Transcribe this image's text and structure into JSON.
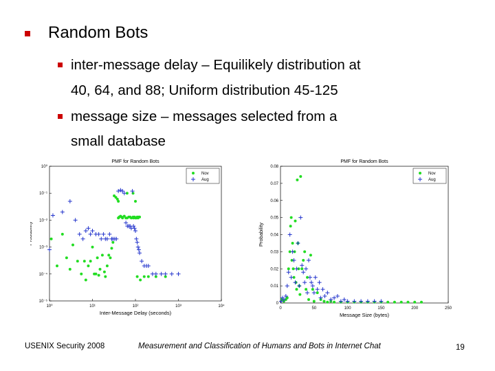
{
  "slide": {
    "heading": "Random Bots",
    "bullets": [
      {
        "lines": [
          "inter-message delay – Equilikely distribution at",
          "40, 64, and 88; Uniform distribution 45-125"
        ]
      },
      {
        "lines": [
          "message size – messages selected from a",
          "small database"
        ]
      }
    ],
    "footer_left": "USENIX Security 2008",
    "footer_center": "Measurement and Classification of Humans and Bots in Internet Chat",
    "page_number": "19"
  },
  "colors": {
    "bullet": "#cc0000",
    "nov": "#22dd22",
    "aug": "#2233cc"
  },
  "chart_data": [
    {
      "type": "scatter",
      "title": "PMF for Random Bots",
      "xlabel": "Inter-Message Delay (seconds)",
      "ylabel": "Probability",
      "x_scale": "log",
      "y_scale": "log",
      "xlim": [
        1,
        10000
      ],
      "ylim": [
        1e-05,
        1
      ],
      "x_ticks": [
        "10⁰",
        "10¹",
        "10²",
        "10³",
        "10⁴"
      ],
      "y_ticks": [
        "10⁰",
        "10⁻¹",
        "10⁻²",
        "10⁻³",
        "10⁻⁴",
        "10⁻⁵"
      ],
      "legend": [
        "Nov",
        "Aug"
      ],
      "legend_position": "top-right",
      "grid": false,
      "series": [
        {
          "name": "Nov",
          "marker": "dot",
          "x": [
            1.1,
            1.5,
            2,
            2.5,
            3,
            3.5,
            4.5,
            5.5,
            6.5,
            7,
            8,
            9,
            10,
            11,
            12,
            13,
            14,
            15,
            17,
            19,
            20,
            22,
            24,
            26,
            28,
            30,
            32,
            35,
            38,
            40,
            40,
            42,
            45,
            48,
            50,
            55,
            60,
            64,
            64,
            70,
            75,
            80,
            88,
            88,
            90,
            95,
            100,
            100,
            105,
            110,
            115,
            120,
            125,
            110,
            130,
            160,
            200,
            300,
            500
          ],
          "y": [
            0.002,
            0.0002,
            0.003,
            0.0004,
            0.00015,
            0.0012,
            0.0003,
            0.0001,
            0.0003,
            6e-05,
            0.0002,
            0.0003,
            0.001,
            0.0001,
            0.0001,
            0.0004,
            9e-05,
            0.00015,
            0.0005,
            0.00012,
            8e-05,
            0.0002,
            0.0005,
            0.0004,
            0.0009,
            0.0015,
            0.08,
            0.07,
            0.06,
            0.05,
            0.012,
            0.013,
            0.014,
            0.013,
            0.012,
            0.014,
            0.012,
            0.012,
            0.1,
            0.013,
            0.013,
            0.012,
            0.013,
            0.1,
            0.012,
            0.013,
            0.012,
            0.05,
            0.012,
            0.013,
            0.012,
            0.013,
            0.013,
            8e-05,
            6e-05,
            8e-05,
            8e-05,
            8e-05,
            8e-05
          ]
        },
        {
          "name": "Aug",
          "marker": "plus",
          "x": [
            1,
            1.2,
            2,
            3,
            4,
            5,
            6,
            7,
            8,
            9,
            10,
            12,
            14,
            16,
            18,
            20,
            22,
            25,
            28,
            30,
            33,
            36,
            40,
            45,
            50,
            55,
            60,
            65,
            70,
            75,
            80,
            85,
            90,
            95,
            100,
            105,
            110,
            115,
            120,
            125,
            140,
            160,
            180,
            200,
            250,
            300,
            400,
            500,
            700,
            1000
          ],
          "y": [
            0.0008,
            0.015,
            0.02,
            0.05,
            0.01,
            0.003,
            0.002,
            0.004,
            0.005,
            0.003,
            0.004,
            0.003,
            0.003,
            0.002,
            0.003,
            0.002,
            0.002,
            0.003,
            0.002,
            0.002,
            0.002,
            0.002,
            0.12,
            0.13,
            0.12,
            0.1,
            0.008,
            0.006,
            0.006,
            0.006,
            0.005,
            0.12,
            0.006,
            0.005,
            0.004,
            0.002,
            0.0015,
            0.001,
            0.0008,
            0.0006,
            0.0003,
            0.0002,
            0.0002,
            0.0002,
            0.0001,
            0.0001,
            0.0001,
            0.0001,
            0.0001,
            0.0001
          ]
        }
      ]
    },
    {
      "type": "scatter",
      "title": "PMF for Random Bots",
      "xlabel": "Message Size (bytes)",
      "ylabel": "Probability",
      "xlim": [
        0,
        250
      ],
      "ylim": [
        0,
        0.08
      ],
      "x_ticks": [
        "0",
        "50",
        "100",
        "150",
        "200",
        "250"
      ],
      "y_ticks": [
        "0",
        "0.01",
        "0.02",
        "0.03",
        "0.04",
        "0.05",
        "0.06",
        "0.07",
        "0.08"
      ],
      "legend": [
        "Nov",
        "Aug"
      ],
      "legend_position": "top-right",
      "grid": false,
      "series": [
        {
          "name": "Nov",
          "marker": "dot",
          "x": [
            2,
            5,
            8,
            10,
            12,
            14,
            15,
            16,
            17,
            18,
            19,
            20,
            21,
            22,
            23,
            24,
            25,
            26,
            27,
            28,
            29,
            30,
            32,
            34,
            36,
            38,
            40,
            42,
            45,
            48,
            50,
            55,
            60,
            65,
            70,
            75,
            80,
            90,
            100,
            110,
            120,
            130,
            140,
            150,
            160,
            170,
            180,
            190,
            200,
            210
          ],
          "y": [
            0.002,
            0.001,
            0.002,
            0.003,
            0.02,
            0.03,
            0.045,
            0.05,
            0.025,
            0.035,
            0.02,
            0.015,
            0.03,
            0.048,
            0.012,
            0.008,
            0.072,
            0.035,
            0.02,
            0.01,
            0.005,
            0.074,
            0.02,
            0.025,
            0.03,
            0.008,
            0.015,
            0.002,
            0.028,
            0.008,
            0.001,
            0.006,
            0.002,
            0.001,
            0.0005,
            0.001,
            0.0005,
            0.0005,
            0.0005,
            0.0005,
            0.0005,
            0.0005,
            0.0005,
            0.0005,
            0.0005,
            0.0005,
            0.0005,
            0.0005,
            0.0005,
            0.0005
          ]
        },
        {
          "name": "Aug",
          "marker": "plus",
          "x": [
            1,
            3,
            5,
            8,
            10,
            12,
            14,
            16,
            18,
            20,
            22,
            24,
            26,
            28,
            30,
            32,
            34,
            36,
            38,
            40,
            42,
            44,
            46,
            48,
            50,
            52,
            55,
            58,
            60,
            63,
            66,
            70,
            75,
            80,
            85,
            90,
            95,
            100,
            110,
            120,
            130,
            140,
            150
          ],
          "y": [
            0.001,
            0.003,
            0.002,
            0.004,
            0.01,
            0.018,
            0.04,
            0.015,
            0.03,
            0.025,
            0.012,
            0.02,
            0.035,
            0.01,
            0.05,
            0.022,
            0.018,
            0.012,
            0.02,
            0.006,
            0.025,
            0.015,
            0.012,
            0.01,
            0.006,
            0.015,
            0.008,
            0.012,
            0.003,
            0.008,
            0.004,
            0.006,
            0.002,
            0.003,
            0.004,
            0.001,
            0.002,
            0.001,
            0.001,
            0.001,
            0.001,
            0.001,
            0.001
          ]
        }
      ]
    }
  ]
}
